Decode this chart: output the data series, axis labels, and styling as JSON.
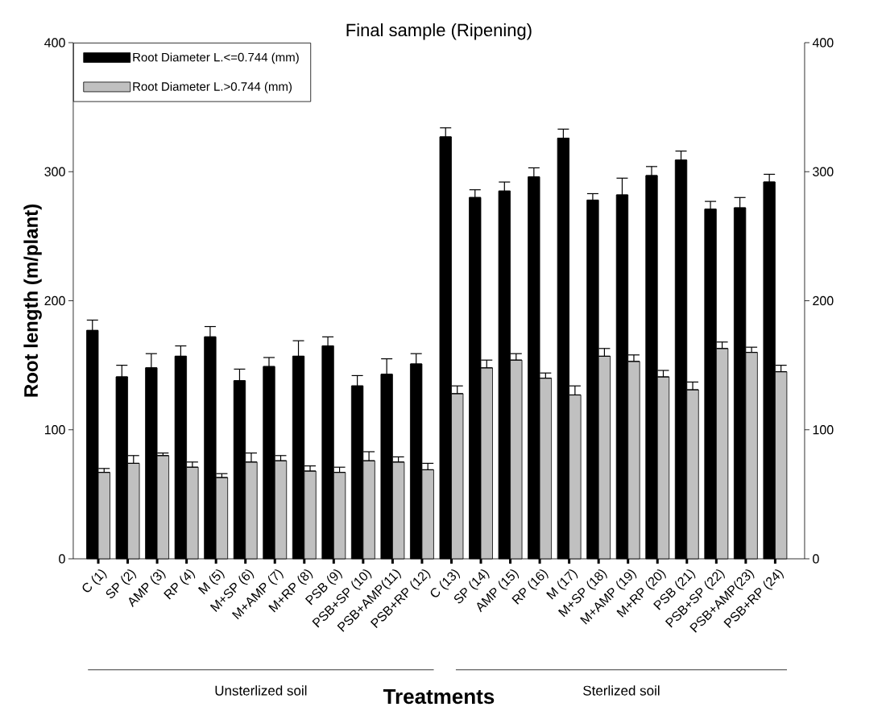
{
  "chart_data": {
    "type": "bar",
    "title": "Final sample (Ripening)",
    "xlabel": "Treatments",
    "ylabel": "Root length (m/plant)",
    "categories": [
      "C (1)",
      "SP (2)",
      "AMP (3)",
      "RP (4)",
      "M (5)",
      "M+SP (6)",
      "M+AMP (7)",
      "M+RP (8)",
      "PSB (9)",
      "PSB+SP (10)",
      "PSB+AMP(11)",
      "PSB+RP (12)",
      "C (13)",
      "SP (14)",
      "AMP (15)",
      "RP (16)",
      "M (17)",
      "M+SP (18)",
      "M+AMP (19)",
      "M+RP (20)",
      "PSB (21)",
      "PSB+SP (22)",
      "PSB+AMP(23)",
      "PSB+RP (24)"
    ],
    "series": [
      {
        "name": "Root Diameter L.<=0.744 (mm)",
        "color": "#000000",
        "values": [
          177,
          141,
          148,
          157,
          172,
          138,
          149,
          157,
          165,
          134,
          143,
          151,
          327,
          280,
          285,
          296,
          326,
          278,
          282,
          297,
          309,
          271,
          272,
          292
        ],
        "errors": [
          [
            177,
            185
          ],
          [
            141,
            150
          ],
          [
            148,
            159
          ],
          [
            157,
            165
          ],
          [
            172,
            180
          ],
          [
            138,
            147
          ],
          [
            149,
            156
          ],
          [
            157,
            169
          ],
          [
            165,
            172
          ],
          [
            134,
            142
          ],
          [
            143,
            155
          ],
          [
            151,
            159
          ],
          [
            327,
            334
          ],
          [
            280,
            286
          ],
          [
            285,
            292
          ],
          [
            296,
            303
          ],
          [
            326,
            333
          ],
          [
            278,
            283
          ],
          [
            282,
            295
          ],
          [
            297,
            304
          ],
          [
            309,
            316
          ],
          [
            271,
            277
          ],
          [
            272,
            280
          ],
          [
            292,
            298
          ]
        ]
      },
      {
        "name": "Root Diameter L.>0.744 (mm)",
        "color": "#c0c0c0",
        "values": [
          67,
          74,
          80,
          71,
          63,
          75,
          76,
          68,
          67,
          76,
          75,
          69,
          128,
          148,
          154,
          140,
          127,
          157,
          153,
          141,
          131,
          163,
          160,
          145
        ],
        "errors": [
          [
            67,
            70
          ],
          [
            74,
            80
          ],
          [
            80,
            82
          ],
          [
            71,
            75
          ],
          [
            63,
            66
          ],
          [
            75,
            82
          ],
          [
            76,
            80
          ],
          [
            68,
            72
          ],
          [
            67,
            71
          ],
          [
            76,
            83
          ],
          [
            75,
            79
          ],
          [
            69,
            74
          ],
          [
            128,
            134
          ],
          [
            148,
            154
          ],
          [
            154,
            159
          ],
          [
            140,
            144
          ],
          [
            127,
            134
          ],
          [
            157,
            163
          ],
          [
            153,
            158
          ],
          [
            141,
            146
          ],
          [
            131,
            137
          ],
          [
            163,
            168
          ],
          [
            160,
            164
          ],
          [
            145,
            150
          ]
        ]
      }
    ],
    "ylim": [
      0,
      400
    ],
    "yticks": [
      0,
      100,
      200,
      300,
      400
    ],
    "y2lim": [
      0,
      400
    ],
    "y2ticks": [
      0,
      100,
      200,
      300,
      400
    ],
    "legend": "top left",
    "grid": false,
    "annotations": [
      "Unsterlized soil",
      "Sterlized soil"
    ]
  }
}
